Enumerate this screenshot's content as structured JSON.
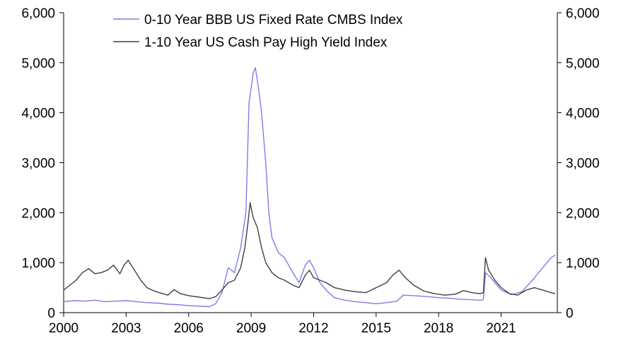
{
  "chart_data": {
    "type": "line",
    "title": "",
    "xlabel": "",
    "ylabel": "",
    "x_range": [
      2000,
      2023.7
    ],
    "ylim": [
      0,
      6000
    ],
    "y_ticks": [
      0,
      1000,
      2000,
      3000,
      4000,
      5000,
      6000
    ],
    "y_tick_labels": [
      "0",
      "1,000",
      "2,000",
      "3,000",
      "4,000",
      "5,000",
      "6,000"
    ],
    "x_ticks": [
      2000,
      2003,
      2006,
      2009,
      2012,
      2015,
      2018,
      2021
    ],
    "x_tick_labels": [
      "2000",
      "2003",
      "2006",
      "2009",
      "2012",
      "2015",
      "2018",
      "2021"
    ],
    "secondary_y_axis": true,
    "grid": false,
    "legend_position": "top-center",
    "series": [
      {
        "name": "0-10 Year BBB US Fixed Rate CMBS Index",
        "color": "#7b7fe6",
        "points": [
          [
            2000.0,
            220
          ],
          [
            2000.5,
            240
          ],
          [
            2001.0,
            230
          ],
          [
            2001.5,
            250
          ],
          [
            2002.0,
            220
          ],
          [
            2002.5,
            230
          ],
          [
            2003.0,
            240
          ],
          [
            2003.5,
            220
          ],
          [
            2004.0,
            200
          ],
          [
            2004.5,
            190
          ],
          [
            2005.0,
            170
          ],
          [
            2005.5,
            160
          ],
          [
            2006.0,
            140
          ],
          [
            2006.5,
            130
          ],
          [
            2007.0,
            120
          ],
          [
            2007.3,
            180
          ],
          [
            2007.6,
            400
          ],
          [
            2007.9,
            900
          ],
          [
            2008.2,
            800
          ],
          [
            2008.5,
            1300
          ],
          [
            2008.75,
            2000
          ],
          [
            2008.9,
            4200
          ],
          [
            2009.0,
            4500
          ],
          [
            2009.1,
            4800
          ],
          [
            2009.2,
            4900
          ],
          [
            2009.35,
            4500
          ],
          [
            2009.5,
            4000
          ],
          [
            2009.7,
            3000
          ],
          [
            2009.85,
            2000
          ],
          [
            2010.0,
            1500
          ],
          [
            2010.3,
            1200
          ],
          [
            2010.6,
            1100
          ],
          [
            2011.0,
            800
          ],
          [
            2011.3,
            600
          ],
          [
            2011.6,
            950
          ],
          [
            2011.8,
            1050
          ],
          [
            2012.0,
            900
          ],
          [
            2012.3,
            600
          ],
          [
            2012.6,
            450
          ],
          [
            2013.0,
            300
          ],
          [
            2013.5,
            250
          ],
          [
            2014.0,
            220
          ],
          [
            2014.5,
            200
          ],
          [
            2015.0,
            180
          ],
          [
            2015.5,
            200
          ],
          [
            2016.0,
            230
          ],
          [
            2016.3,
            350
          ],
          [
            2016.8,
            340
          ],
          [
            2017.5,
            320
          ],
          [
            2018.0,
            300
          ],
          [
            2018.5,
            290
          ],
          [
            2019.0,
            270
          ],
          [
            2019.5,
            260
          ],
          [
            2020.0,
            250
          ],
          [
            2020.15,
            260
          ],
          [
            2020.25,
            800
          ],
          [
            2020.5,
            700
          ],
          [
            2020.8,
            550
          ],
          [
            2021.0,
            450
          ],
          [
            2021.5,
            360
          ],
          [
            2022.0,
            420
          ],
          [
            2022.5,
            650
          ],
          [
            2023.0,
            900
          ],
          [
            2023.4,
            1100
          ],
          [
            2023.6,
            1150
          ]
        ]
      },
      {
        "name": "1-10 Year US Cash Pay High Yield Index",
        "color": "#404040",
        "points": [
          [
            2000.0,
            450
          ],
          [
            2000.3,
            550
          ],
          [
            2000.6,
            650
          ],
          [
            2000.9,
            800
          ],
          [
            2001.2,
            880
          ],
          [
            2001.5,
            780
          ],
          [
            2001.8,
            800
          ],
          [
            2002.1,
            850
          ],
          [
            2002.4,
            950
          ],
          [
            2002.7,
            780
          ],
          [
            2002.9,
            950
          ],
          [
            2003.1,
            1050
          ],
          [
            2003.4,
            850
          ],
          [
            2003.7,
            650
          ],
          [
            2004.0,
            500
          ],
          [
            2004.3,
            440
          ],
          [
            2004.6,
            400
          ],
          [
            2005.0,
            350
          ],
          [
            2005.3,
            460
          ],
          [
            2005.6,
            380
          ],
          [
            2006.0,
            340
          ],
          [
            2006.5,
            310
          ],
          [
            2007.0,
            280
          ],
          [
            2007.3,
            320
          ],
          [
            2007.6,
            450
          ],
          [
            2007.9,
            600
          ],
          [
            2008.2,
            650
          ],
          [
            2008.5,
            900
          ],
          [
            2008.7,
            1300
          ],
          [
            2008.85,
            1800
          ],
          [
            2008.95,
            2200
          ],
          [
            2009.1,
            1900
          ],
          [
            2009.3,
            1700
          ],
          [
            2009.5,
            1300
          ],
          [
            2009.7,
            1000
          ],
          [
            2010.0,
            800
          ],
          [
            2010.3,
            700
          ],
          [
            2010.6,
            650
          ],
          [
            2011.0,
            550
          ],
          [
            2011.3,
            500
          ],
          [
            2011.6,
            750
          ],
          [
            2011.8,
            850
          ],
          [
            2012.0,
            700
          ],
          [
            2012.3,
            650
          ],
          [
            2012.6,
            600
          ],
          [
            2013.0,
            500
          ],
          [
            2013.5,
            450
          ],
          [
            2014.0,
            420
          ],
          [
            2014.5,
            400
          ],
          [
            2015.0,
            500
          ],
          [
            2015.5,
            600
          ],
          [
            2015.8,
            750
          ],
          [
            2016.1,
            850
          ],
          [
            2016.4,
            700
          ],
          [
            2016.8,
            550
          ],
          [
            2017.3,
            430
          ],
          [
            2017.8,
            380
          ],
          [
            2018.3,
            350
          ],
          [
            2018.8,
            370
          ],
          [
            2019.2,
            440
          ],
          [
            2019.6,
            400
          ],
          [
            2020.0,
            380
          ],
          [
            2020.15,
            400
          ],
          [
            2020.25,
            1100
          ],
          [
            2020.4,
            850
          ],
          [
            2020.7,
            650
          ],
          [
            2021.0,
            500
          ],
          [
            2021.4,
            380
          ],
          [
            2021.8,
            350
          ],
          [
            2022.2,
            450
          ],
          [
            2022.6,
            500
          ],
          [
            2023.0,
            450
          ],
          [
            2023.4,
            400
          ],
          [
            2023.6,
            380
          ]
        ]
      }
    ]
  }
}
